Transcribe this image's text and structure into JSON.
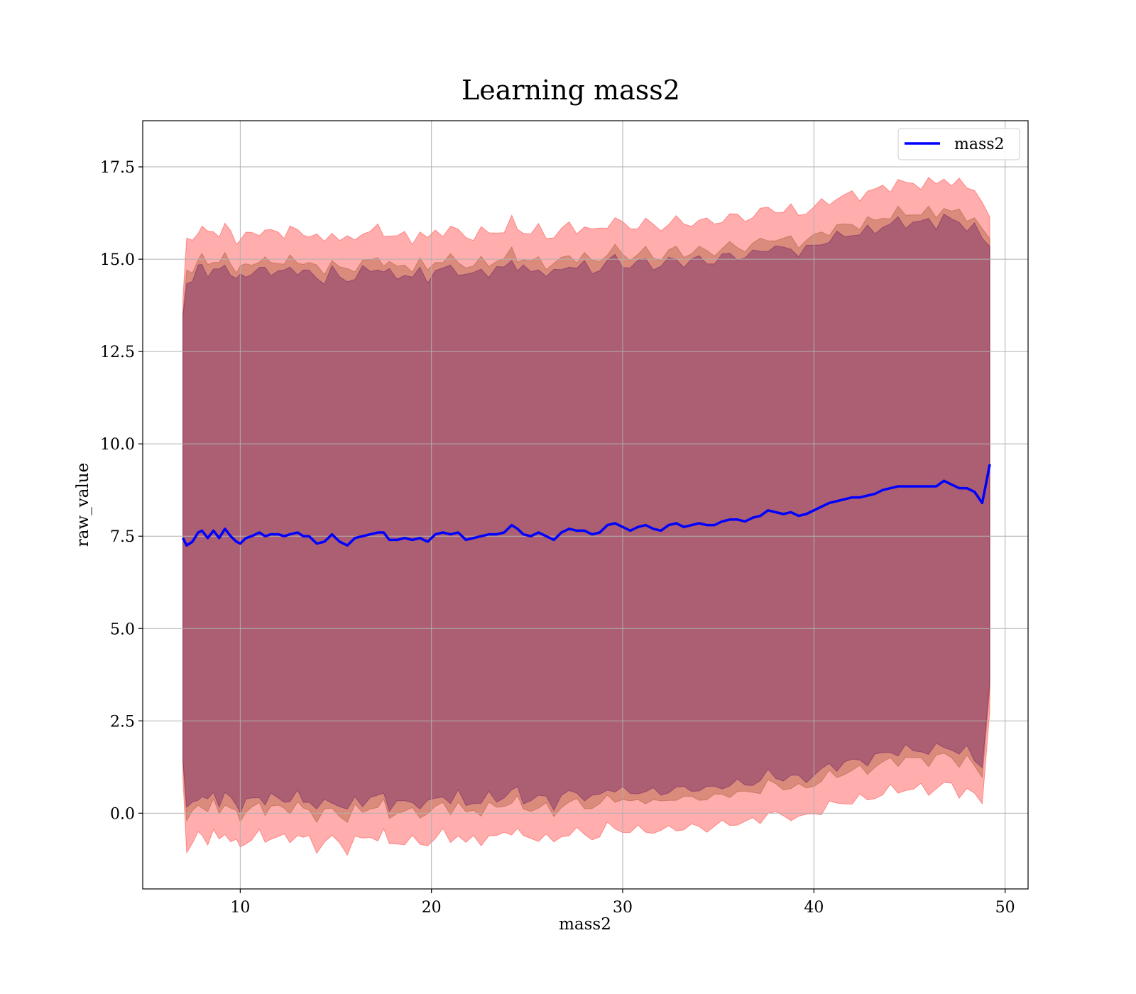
{
  "chart_data": {
    "type": "line",
    "title": "Learning mass2",
    "xlabel": "mass2",
    "ylabel": "raw_value",
    "xlim": [
      4.9,
      51.2
    ],
    "ylim": [
      -2.05,
      18.75
    ],
    "xticks": [
      10,
      20,
      30,
      40,
      50
    ],
    "yticks": [
      0.0,
      2.5,
      5.0,
      7.5,
      10.0,
      12.5,
      15.0,
      17.5
    ],
    "xtick_labels": [
      "10",
      "20",
      "30",
      "40",
      "50"
    ],
    "ytick_labels": [
      "0.0",
      "2.5",
      "5.0",
      "7.5",
      "10.0",
      "12.5",
      "15.0",
      "17.5"
    ],
    "grid": true,
    "legend_position": "top-right",
    "series": [
      {
        "name": "mass2",
        "color": "#0000ff",
        "x": [
          7.0,
          7.2,
          7.5,
          7.8,
          8.0,
          8.3,
          8.6,
          8.9,
          9.2,
          9.5,
          9.8,
          10.0,
          10.3,
          10.6,
          11.0,
          11.3,
          11.6,
          12.0,
          12.3,
          12.6,
          13.0,
          13.3,
          13.6,
          14.0,
          14.4,
          14.8,
          15.2,
          15.6,
          16.0,
          16.4,
          16.8,
          17.2,
          17.5,
          17.8,
          18.2,
          18.6,
          19.0,
          19.4,
          19.8,
          20.2,
          20.6,
          21.0,
          21.4,
          21.8,
          22.2,
          22.6,
          23.0,
          23.4,
          23.8,
          24.2,
          24.5,
          24.8,
          25.2,
          25.6,
          26.0,
          26.4,
          26.8,
          27.2,
          27.6,
          28.0,
          28.4,
          28.8,
          29.2,
          29.6,
          30.0,
          30.4,
          30.8,
          31.2,
          31.6,
          32.0,
          32.4,
          32.8,
          33.2,
          33.6,
          34.0,
          34.4,
          34.8,
          35.2,
          35.6,
          36.0,
          36.4,
          36.8,
          37.2,
          37.6,
          38.0,
          38.4,
          38.8,
          39.2,
          39.6,
          40.0,
          40.4,
          40.8,
          41.2,
          41.6,
          42.0,
          42.4,
          42.8,
          43.2,
          43.6,
          44.0,
          44.4,
          44.8,
          45.2,
          45.6,
          46.0,
          46.4,
          46.8,
          47.2,
          47.6,
          48.0,
          48.4,
          48.8,
          49.2
        ],
        "y": [
          7.45,
          7.25,
          7.35,
          7.6,
          7.65,
          7.45,
          7.65,
          7.45,
          7.7,
          7.5,
          7.35,
          7.3,
          7.45,
          7.5,
          7.6,
          7.5,
          7.55,
          7.55,
          7.5,
          7.55,
          7.6,
          7.5,
          7.5,
          7.3,
          7.35,
          7.55,
          7.35,
          7.25,
          7.45,
          7.5,
          7.55,
          7.6,
          7.6,
          7.4,
          7.4,
          7.45,
          7.4,
          7.45,
          7.35,
          7.55,
          7.6,
          7.55,
          7.6,
          7.4,
          7.45,
          7.5,
          7.55,
          7.55,
          7.6,
          7.8,
          7.7,
          7.55,
          7.5,
          7.6,
          7.5,
          7.4,
          7.6,
          7.7,
          7.65,
          7.65,
          7.55,
          7.6,
          7.8,
          7.85,
          7.75,
          7.65,
          7.75,
          7.8,
          7.7,
          7.65,
          7.8,
          7.85,
          7.75,
          7.8,
          7.85,
          7.8,
          7.8,
          7.9,
          7.95,
          7.95,
          7.9,
          8.0,
          8.05,
          8.2,
          8.15,
          8.1,
          8.15,
          8.05,
          8.1,
          8.2,
          8.3,
          8.4,
          8.45,
          8.5,
          8.55,
          8.55,
          8.6,
          8.65,
          8.75,
          8.8,
          8.85,
          8.85,
          8.85,
          8.85,
          8.85,
          8.85,
          9.0,
          8.9,
          8.8,
          8.8,
          8.7,
          8.4,
          9.45
        ]
      }
    ],
    "bands": [
      {
        "color": "#ff0000",
        "opacity": 0.32,
        "sigma": 8.2,
        "edge_sigma": 6.5
      },
      {
        "color": "#8b4513",
        "opacity": 0.32,
        "sigma": 7.4,
        "edge_sigma": 6.0
      },
      {
        "color": "#4b0060",
        "opacity": 0.32,
        "sigma": 7.15,
        "edge_sigma": 5.9
      }
    ]
  }
}
